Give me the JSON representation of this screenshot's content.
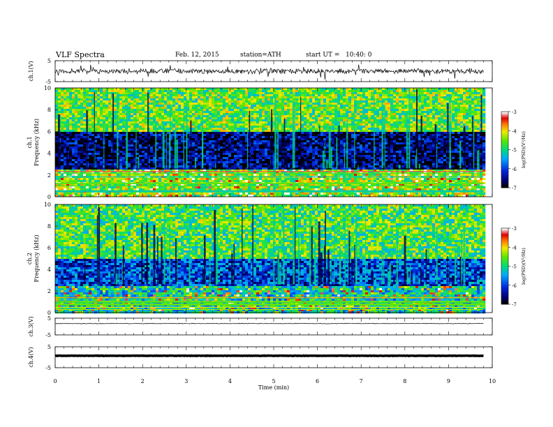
{
  "header": {
    "title": "VLF Spectra",
    "date": "Feb. 12, 2015",
    "station": "station=ATH",
    "start_ut": "start UT =   10:40: 0"
  },
  "chart_data": [
    {
      "type": "line",
      "panel": "ch1-waveform",
      "ylabel": "ch.1(V)",
      "ylim": [
        -5,
        5
      ],
      "yticks": [
        "5",
        "-5"
      ],
      "baseline": 0,
      "noise_amplitude": 1.5,
      "xlim": [
        0,
        10
      ],
      "data_end": 9.8
    },
    {
      "type": "heatmap",
      "panel": "ch1-spectrogram",
      "ylabel_top": "ch.1",
      "ylabel": "Frequency (kHz)",
      "ylim": [
        0,
        10
      ],
      "yticks": [
        "0",
        "2",
        "4",
        "6",
        "8",
        "10"
      ],
      "xlim": [
        0,
        10
      ],
      "data_end": 9.8,
      "bands_khz": [
        [
          0.0,
          2.5,
          -4.5
        ],
        [
          2.5,
          6.0,
          -6.6
        ],
        [
          6.0,
          10.0,
          -4.6
        ]
      ],
      "colorbar": {
        "label": "log(PSD)(V²/Hz)",
        "range": [
          -7,
          -3
        ],
        "ticks": [
          "-3",
          "-4",
          "-5",
          "-6",
          "-7"
        ]
      }
    },
    {
      "type": "heatmap",
      "panel": "ch2-spectrogram",
      "ylabel_top": "ch.2",
      "ylabel": "Frequency (kHz)",
      "ylim": [
        0,
        10
      ],
      "yticks": [
        "0",
        "2",
        "4",
        "6",
        "8",
        "10"
      ],
      "xlim": [
        0,
        10
      ],
      "data_end": 9.8,
      "bands_khz": [
        [
          0.0,
          2.5,
          -5.2
        ],
        [
          2.5,
          5.0,
          -6.0
        ],
        [
          5.0,
          10.0,
          -4.7
        ]
      ],
      "colorbar": {
        "label": "log(PSD)(V²/Hz)",
        "range": [
          -7,
          -3
        ],
        "ticks": [
          "-3",
          "-4",
          "-5",
          "-6",
          "-7"
        ]
      }
    },
    {
      "type": "line",
      "panel": "ch3-waveform",
      "ylabel": "ch.3(V)",
      "ylim": [
        -5,
        5
      ],
      "yticks": [
        "5",
        "-5"
      ],
      "baseline": 1.8,
      "noise_amplitude": 0.25,
      "xlim": [
        0,
        10
      ],
      "data_end": 9.8
    },
    {
      "type": "line",
      "panel": "ch4-waveform",
      "ylabel": "ch.4(V)",
      "ylim": [
        -5,
        5
      ],
      "yticks": [
        "5",
        "-5"
      ],
      "baseline": 0.7,
      "noise_amplitude": 0.12,
      "xlim": [
        0,
        10
      ],
      "data_end": 9.8,
      "xlabel": "Time (min)",
      "xticks": [
        "0",
        "1",
        "2",
        "3",
        "4",
        "5",
        "6",
        "7",
        "8",
        "9",
        "10"
      ]
    }
  ]
}
